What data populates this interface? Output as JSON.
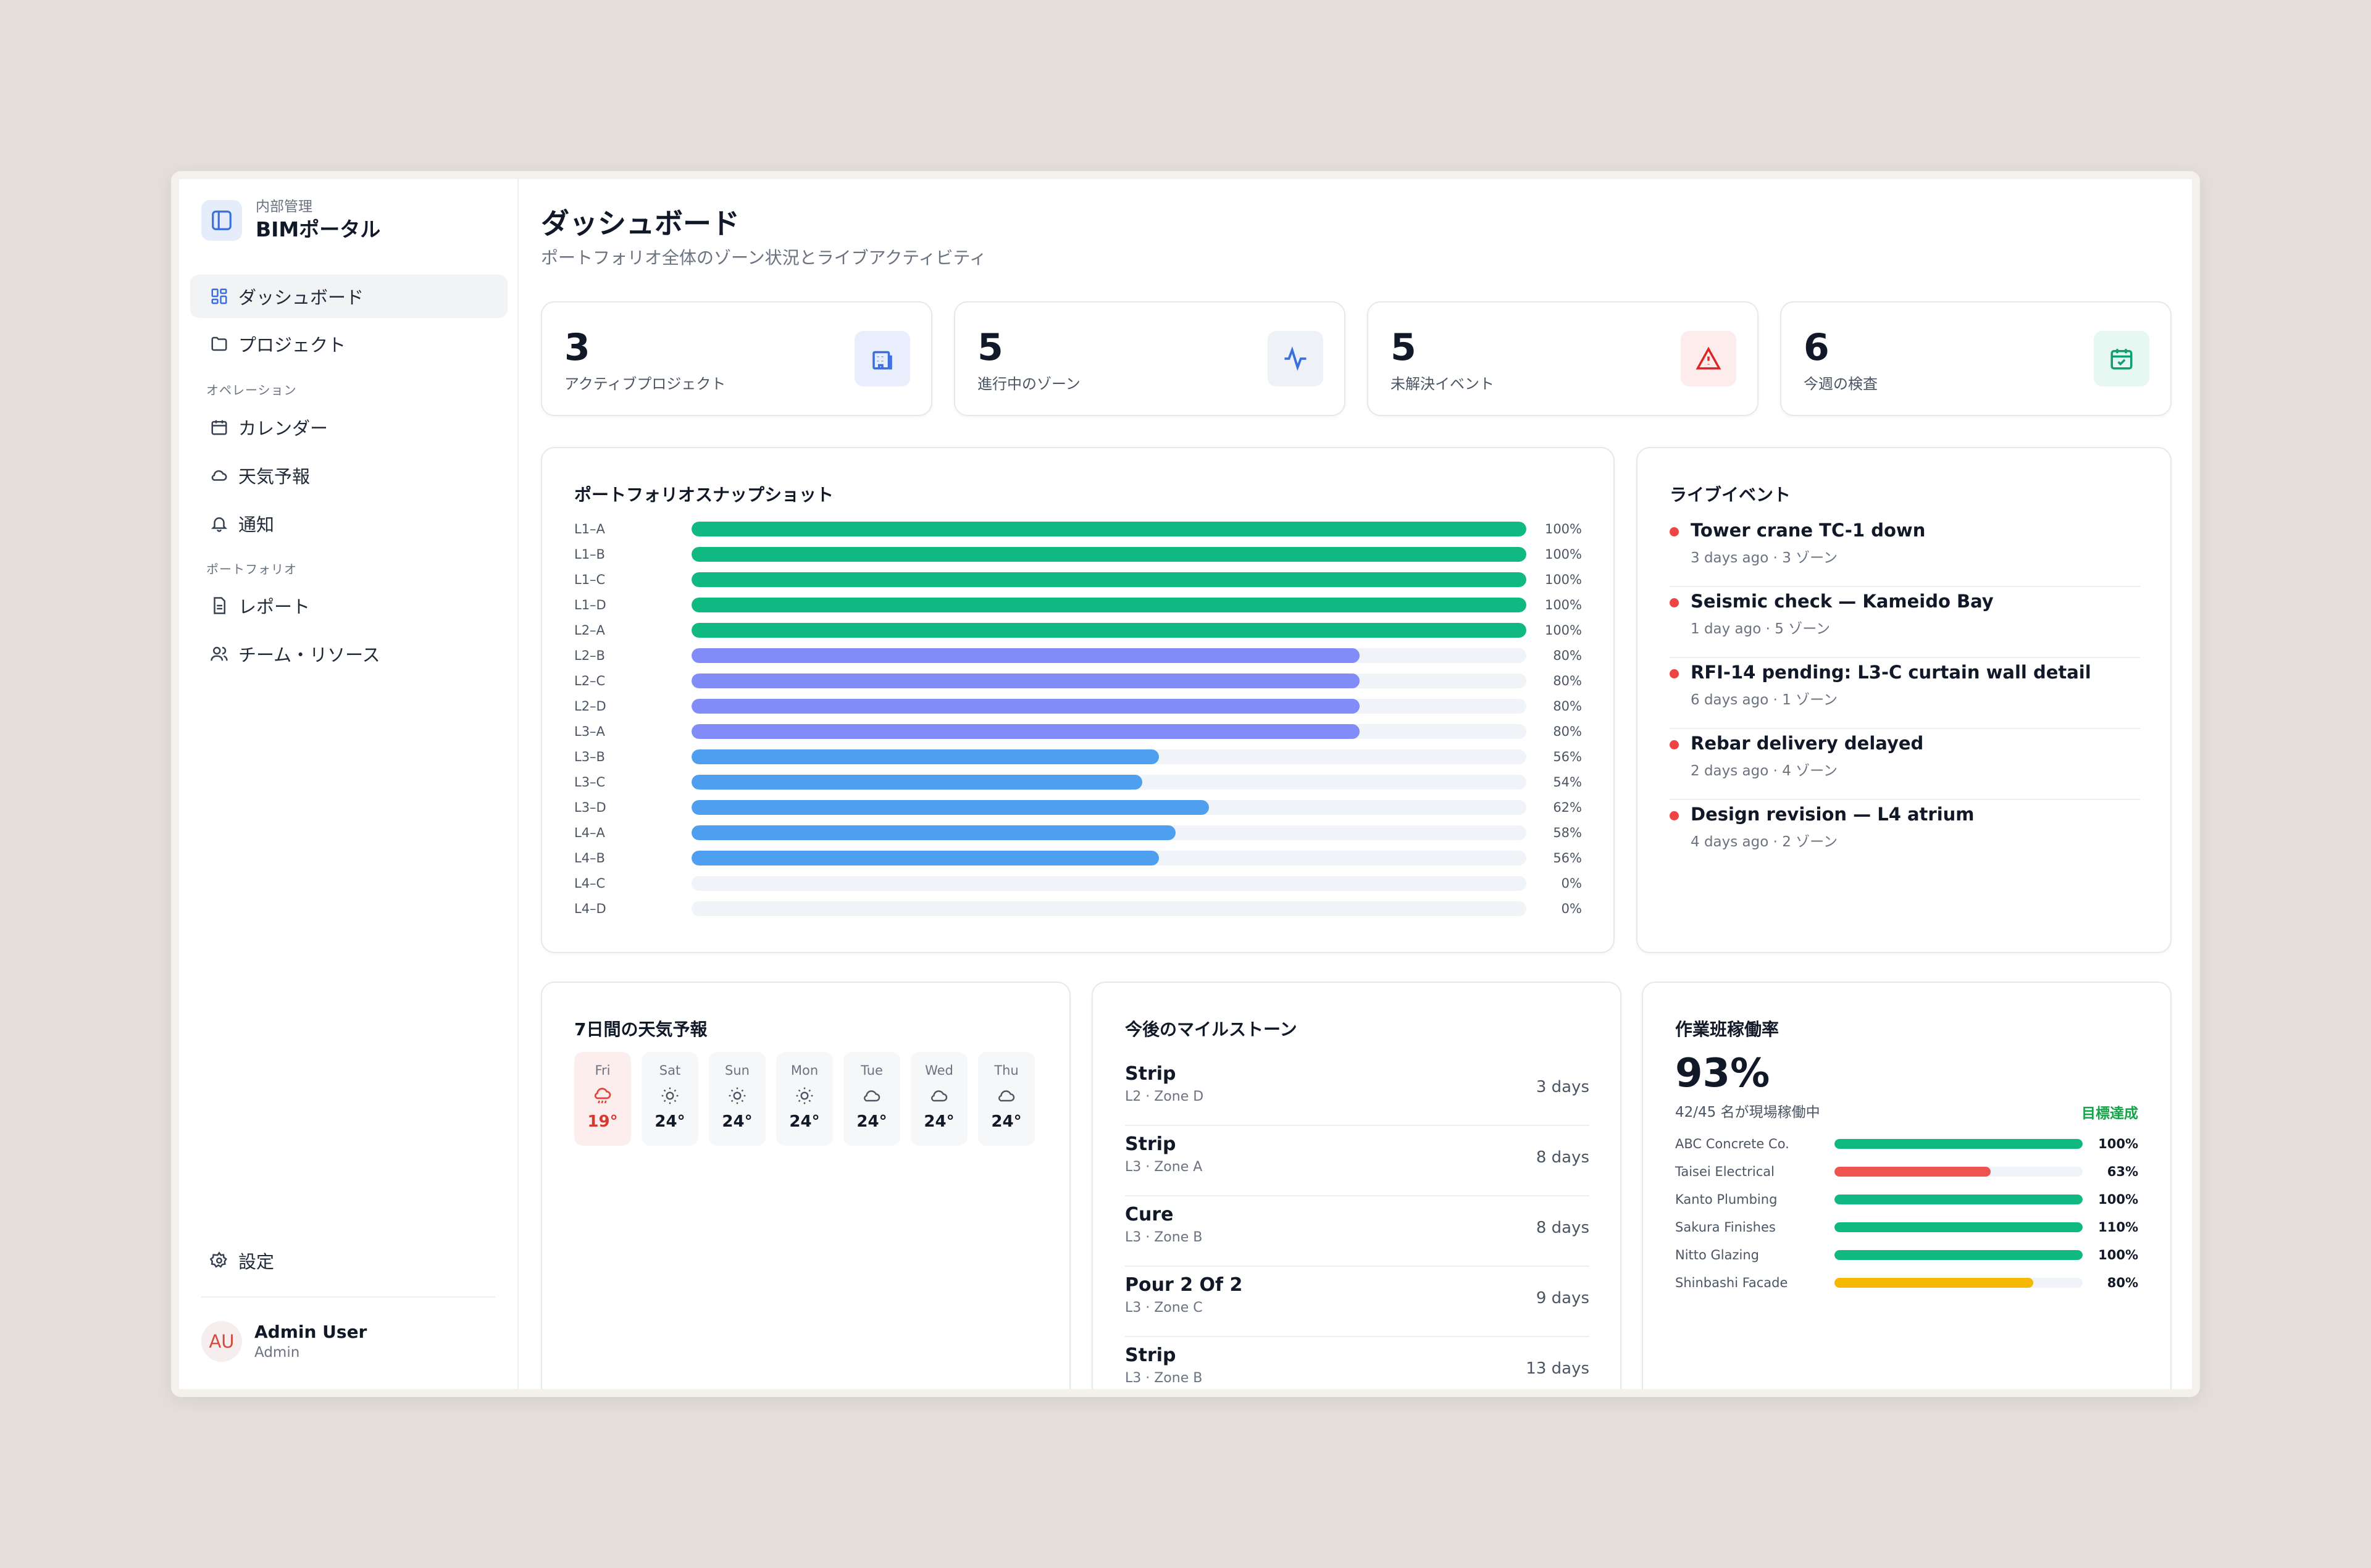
{
  "brand": {
    "subtitle": "内部管理",
    "title": "BIMポータル"
  },
  "nav": {
    "items_main": [
      {
        "label": "ダッシュボード",
        "icon": "grid-icon"
      },
      {
        "label": "プロジェクト",
        "icon": "folder-icon"
      }
    ],
    "section_ops": "オペレーション",
    "items_ops": [
      {
        "label": "カレンダー",
        "icon": "calendar-icon"
      },
      {
        "label": "天気予報",
        "icon": "cloud-icon"
      },
      {
        "label": "通知",
        "icon": "bell-icon"
      }
    ],
    "section_portfolio": "ポートフォリオ",
    "items_portfolio": [
      {
        "label": "レポート",
        "icon": "document-icon"
      },
      {
        "label": "チーム・リソース",
        "icon": "users-icon"
      }
    ],
    "settings": "設定"
  },
  "user": {
    "initials": "AU",
    "name": "Admin User",
    "role": "Admin"
  },
  "header": {
    "title": "ダッシュボード",
    "subtitle": "ポートフォリオ全体のゾーン状況とライブアクティビティ"
  },
  "kpis": [
    {
      "value": "3",
      "label": "アクティブプロジェクト",
      "icon": "building-icon",
      "color": "#3b6fe0",
      "bg": "#e8eefb"
    },
    {
      "value": "5",
      "label": "進行中のゾーン",
      "icon": "activity-icon",
      "color": "#3b6fe0",
      "bg": "#eef2f8"
    },
    {
      "value": "5",
      "label": "未解決イベント",
      "icon": "alert-icon",
      "color": "#dc2626",
      "bg": "#fdecec"
    },
    {
      "value": "6",
      "label": "今週の検査",
      "icon": "calendar-check-icon",
      "color": "#0f9f74",
      "bg": "#e6f6f0"
    }
  ],
  "snapshot": {
    "title": "ポートフォリオスナップショット",
    "colors": {
      "complete": "#10b981",
      "high": "#818cf8",
      "mid": "#4f9ff0"
    },
    "rows": [
      {
        "label": "L1–A",
        "value": 100,
        "pct": "100%"
      },
      {
        "label": "L1–B",
        "value": 100,
        "pct": "100%"
      },
      {
        "label": "L1–C",
        "value": 100,
        "pct": "100%"
      },
      {
        "label": "L1–D",
        "value": 100,
        "pct": "100%"
      },
      {
        "label": "L2–A",
        "value": 100,
        "pct": "100%"
      },
      {
        "label": "L2–B",
        "value": 80,
        "pct": "80%"
      },
      {
        "label": "L2–C",
        "value": 80,
        "pct": "80%"
      },
      {
        "label": "L2–D",
        "value": 80,
        "pct": "80%"
      },
      {
        "label": "L3–A",
        "value": 80,
        "pct": "80%"
      },
      {
        "label": "L3–B",
        "value": 56,
        "pct": "56%"
      },
      {
        "label": "L3–C",
        "value": 54,
        "pct": "54%"
      },
      {
        "label": "L3–D",
        "value": 62,
        "pct": "62%"
      },
      {
        "label": "L4–A",
        "value": 58,
        "pct": "58%"
      },
      {
        "label": "L4–B",
        "value": 56,
        "pct": "56%"
      },
      {
        "label": "L4–C",
        "value": 0,
        "pct": "0%"
      },
      {
        "label": "L4–D",
        "value": 0,
        "pct": "0%"
      }
    ]
  },
  "events": {
    "title": "ライブイベント",
    "items": [
      {
        "title": "Tower crane TC-1 down",
        "meta": "3 days ago · 3 ゾーン"
      },
      {
        "title": "Seismic check — Kameido Bay",
        "meta": "1 day ago · 5 ゾーン"
      },
      {
        "title": "RFI-14 pending: L3-C curtain wall detail",
        "meta": "6 days ago · 1 ゾーン"
      },
      {
        "title": "Rebar delivery delayed",
        "meta": "2 days ago · 4 ゾーン"
      },
      {
        "title": "Design revision — L4 atrium",
        "meta": "4 days ago · 2 ゾーン"
      }
    ]
  },
  "weather": {
    "title": "7日間の天気予報",
    "days": [
      {
        "day": "Fri",
        "temp": "19°",
        "icon": "rain-icon",
        "today": true
      },
      {
        "day": "Sat",
        "temp": "24°",
        "icon": "sun-icon"
      },
      {
        "day": "Sun",
        "temp": "24°",
        "icon": "sun-icon"
      },
      {
        "day": "Mon",
        "temp": "24°",
        "icon": "sun-icon"
      },
      {
        "day": "Tue",
        "temp": "24°",
        "icon": "cloud-icon"
      },
      {
        "day": "Wed",
        "temp": "24°",
        "icon": "cloud-icon"
      },
      {
        "day": "Thu",
        "temp": "24°",
        "icon": "cloud-icon"
      }
    ]
  },
  "milestones": {
    "title": "今後のマイルストーン",
    "items": [
      {
        "name": "Strip",
        "loc": "L2 · Zone D",
        "days": "3 days"
      },
      {
        "name": "Strip",
        "loc": "L3 · Zone A",
        "days": "8 days"
      },
      {
        "name": "Cure",
        "loc": "L3 · Zone B",
        "days": "8 days"
      },
      {
        "name": "Pour 2 Of 2",
        "loc": "L3 · Zone C",
        "days": "9 days"
      },
      {
        "name": "Strip",
        "loc": "L3 · Zone B",
        "days": "13 days"
      }
    ]
  },
  "utilization": {
    "title": "作業班稼働率",
    "value": "93%",
    "sub": "42/45 名が現場稼働中",
    "badge": "目標達成",
    "crews": [
      {
        "name": "ABC Concrete Co.",
        "value": 100,
        "pct": "100%",
        "color": "#10b981"
      },
      {
        "name": "Taisei Electrical",
        "value": 63,
        "pct": "63%",
        "color": "#ef5350"
      },
      {
        "name": "Kanto Plumbing",
        "value": 100,
        "pct": "100%",
        "color": "#10b981"
      },
      {
        "name": "Sakura Finishes",
        "value": 110,
        "pct": "110%",
        "color": "#10b981"
      },
      {
        "name": "Nitto Glazing",
        "value": 100,
        "pct": "100%",
        "color": "#10b981"
      },
      {
        "name": "Shinbashi Facade",
        "value": 80,
        "pct": "80%",
        "color": "#f5b800"
      }
    ]
  }
}
